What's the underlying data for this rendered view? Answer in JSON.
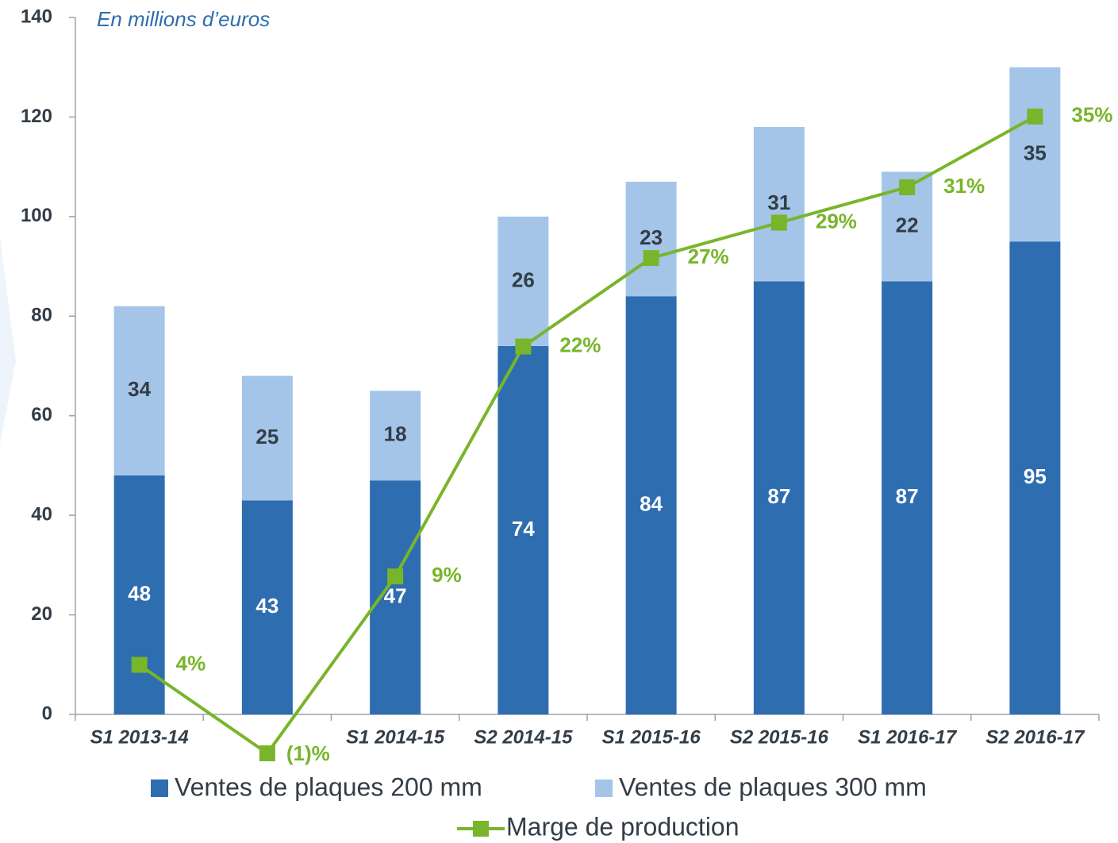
{
  "chart_data": {
    "type": "bar",
    "stacked": true,
    "subtitle": "En millions d’euros",
    "categories": [
      "S1 2013-14",
      null,
      "S1 2014-15",
      "S2 2014-15",
      "S1 2015-16",
      "S2 2015-16",
      "S1 2016-17",
      "S2 2016-17"
    ],
    "series": [
      {
        "name": "Ventes de plaques 200 mm",
        "type": "bar",
        "color": "#2e6db0",
        "values": [
          48,
          43,
          47,
          74,
          84,
          87,
          87,
          95
        ]
      },
      {
        "name": "Ventes de plaques 300 mm",
        "type": "bar",
        "color": "#a4c5e8",
        "values": [
          34,
          25,
          18,
          26,
          23,
          31,
          22,
          35
        ]
      },
      {
        "name": "Marge de production",
        "type": "line",
        "axis": "y2",
        "color": "#78b52a",
        "values": [
          4,
          -1,
          9,
          22,
          27,
          29,
          31,
          35
        ],
        "value_labels": [
          "4%",
          "(1)%",
          "9%",
          "22%",
          "27%",
          "29%",
          "31%",
          "35%"
        ]
      }
    ],
    "ylim": [
      0,
      140
    ],
    "yticks": [
      0,
      20,
      40,
      60,
      80,
      100,
      120,
      140
    ],
    "y2lim": [
      1.2,
      40.6
    ],
    "grid": false,
    "legend": "bottom"
  }
}
